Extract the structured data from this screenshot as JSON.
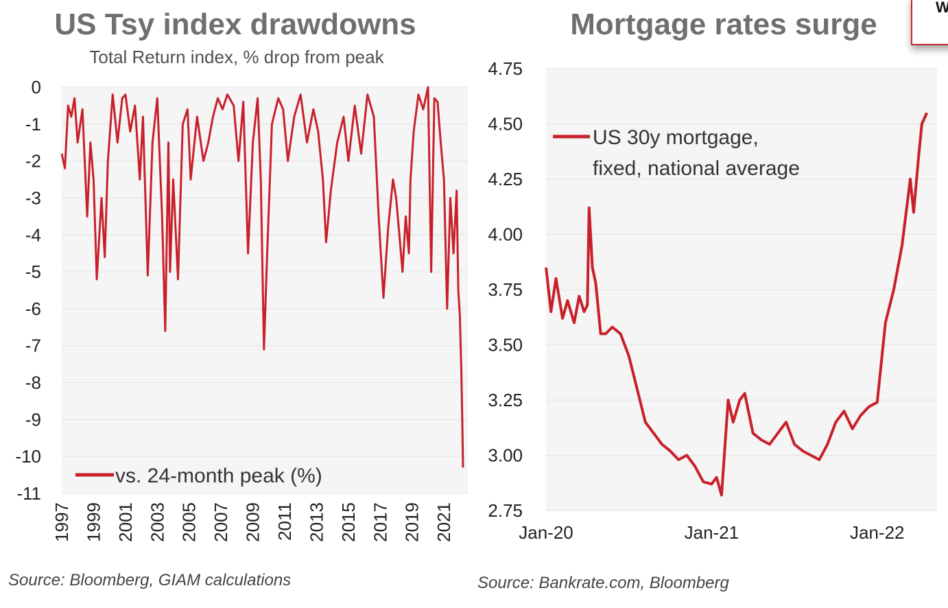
{
  "colors": {
    "line": "#c8202b",
    "plot_bg": "#f5f5f5"
  },
  "corner_label": "W",
  "charts": [
    {
      "type": "line",
      "title": "US Tsy index drawdowns",
      "subtitle": "Total Return index, % drop from peak",
      "ylim": [
        -11,
        0
      ],
      "yticks": [
        "0",
        "-1",
        "-2",
        "-3",
        "-4",
        "-5",
        "-6",
        "-7",
        "-8",
        "-9",
        "-10",
        "-11"
      ],
      "xlim": [
        1997,
        2022.5
      ],
      "xticks": [
        "1997",
        "1999",
        "2001",
        "2003",
        "2005",
        "2007",
        "2009",
        "2011",
        "2013",
        "2015",
        "2017",
        "2019",
        "2021"
      ],
      "legend": "vs. 24-month peak (%)",
      "source": "Source: Bloomberg, GIAM calculations",
      "series": [
        {
          "name": "vs. 24-month peak (%)",
          "x": [
            1997.0,
            1997.2,
            1997.4,
            1997.6,
            1997.8,
            1998.0,
            1998.3,
            1998.6,
            1998.8,
            1999.0,
            1999.2,
            1999.5,
            1999.7,
            1999.9,
            2000.2,
            2000.5,
            2000.8,
            2001.0,
            2001.3,
            2001.6,
            2001.9,
            2002.1,
            2002.4,
            2002.7,
            2003.0,
            2003.3,
            2003.5,
            2003.7,
            2003.8,
            2004.0,
            2004.3,
            2004.6,
            2004.9,
            2005.1,
            2005.5,
            2005.9,
            2006.2,
            2006.5,
            2006.8,
            2007.1,
            2007.4,
            2007.8,
            2008.1,
            2008.4,
            2008.7,
            2009.0,
            2009.3,
            2009.5,
            2009.7,
            2009.9,
            2010.2,
            2010.6,
            2010.9,
            2011.2,
            2011.6,
            2012.0,
            2012.4,
            2012.8,
            2013.1,
            2013.4,
            2013.6,
            2013.9,
            2014.3,
            2014.7,
            2015.0,
            2015.4,
            2015.8,
            2016.2,
            2016.6,
            2016.9,
            2017.2,
            2017.5,
            2017.8,
            2018.0,
            2018.2,
            2018.4,
            2018.6,
            2018.8,
            2018.9,
            2019.1,
            2019.4,
            2019.7,
            2020.0,
            2020.2,
            2020.4,
            2020.6,
            2020.8,
            2021.0,
            2021.2,
            2021.4,
            2021.6,
            2021.8,
            2021.9,
            2022.0,
            2022.1,
            2022.15,
            2022.2
          ],
          "y": [
            -1.8,
            -2.2,
            -0.5,
            -0.8,
            -0.3,
            -1.5,
            -0.6,
            -3.5,
            -1.5,
            -2.5,
            -5.2,
            -3.0,
            -4.6,
            -2.0,
            -0.2,
            -1.5,
            -0.3,
            -0.2,
            -1.2,
            -0.5,
            -2.5,
            -0.8,
            -5.1,
            -1.5,
            -0.3,
            -3.5,
            -6.6,
            -1.5,
            -5.0,
            -2.5,
            -5.2,
            -1.0,
            -0.6,
            -2.5,
            -0.8,
            -2.0,
            -1.5,
            -0.8,
            -0.3,
            -0.6,
            -0.2,
            -0.5,
            -2.0,
            -0.4,
            -4.5,
            -1.5,
            -0.3,
            -2.5,
            -7.1,
            -4.5,
            -1.0,
            -0.3,
            -0.6,
            -2.0,
            -0.8,
            -0.2,
            -1.5,
            -0.6,
            -1.2,
            -2.5,
            -4.2,
            -2.8,
            -1.5,
            -0.8,
            -2.0,
            -0.5,
            -1.8,
            -0.2,
            -0.8,
            -3.5,
            -5.7,
            -3.8,
            -2.5,
            -3.0,
            -4.0,
            -5.0,
            -3.5,
            -4.5,
            -2.5,
            -1.2,
            -0.2,
            -0.6,
            0.0,
            -5.0,
            -0.3,
            -0.4,
            -1.5,
            -2.5,
            -6.0,
            -3.0,
            -4.5,
            -2.8,
            -5.5,
            -6.2,
            -7.8,
            -9.0,
            -10.3
          ]
        }
      ]
    },
    {
      "type": "line",
      "title": "Mortgage rates surge",
      "ylim": [
        2.75,
        4.75
      ],
      "yticks": [
        "4.75",
        "4.50",
        "4.25",
        "4.00",
        "3.75",
        "3.50",
        "3.25",
        "3.00",
        "2.75"
      ],
      "xticks": [
        "Jan-20",
        "Jan-21",
        "Jan-22"
      ],
      "legend_line1": "US 30y mortgage,",
      "legend_line2": "fixed, national average",
      "source": "Source: Bankrate.com, Bloomberg",
      "series": [
        {
          "name": "US 30y mortgage, fixed, national average",
          "x": [
            2020.0,
            2020.03,
            2020.06,
            2020.1,
            2020.13,
            2020.17,
            2020.2,
            2020.23,
            2020.25,
            2020.26,
            2020.28,
            2020.3,
            2020.33,
            2020.36,
            2020.4,
            2020.45,
            2020.5,
            2020.55,
            2020.6,
            2020.65,
            2020.7,
            2020.75,
            2020.8,
            2020.85,
            2020.9,
            2020.95,
            2021.0,
            2021.03,
            2021.06,
            2021.1,
            2021.13,
            2021.17,
            2021.2,
            2021.25,
            2021.3,
            2021.35,
            2021.4,
            2021.45,
            2021.5,
            2021.55,
            2021.6,
            2021.65,
            2021.7,
            2021.75,
            2021.8,
            2021.85,
            2021.9,
            2021.95,
            2022.0,
            2022.05,
            2022.1,
            2022.15,
            2022.2,
            2022.22,
            2022.25,
            2022.27,
            2022.3
          ],
          "y": [
            3.85,
            3.65,
            3.8,
            3.62,
            3.7,
            3.6,
            3.72,
            3.65,
            3.68,
            4.12,
            3.85,
            3.78,
            3.55,
            3.55,
            3.58,
            3.55,
            3.45,
            3.3,
            3.15,
            3.1,
            3.05,
            3.02,
            2.98,
            3.0,
            2.95,
            2.88,
            2.87,
            2.9,
            2.82,
            3.25,
            3.15,
            3.25,
            3.28,
            3.1,
            3.07,
            3.05,
            3.1,
            3.15,
            3.05,
            3.02,
            3.0,
            2.98,
            3.05,
            3.15,
            3.2,
            3.12,
            3.18,
            3.22,
            3.24,
            3.6,
            3.75,
            3.95,
            4.25,
            4.1,
            4.35,
            4.5,
            4.55
          ]
        }
      ]
    }
  ]
}
